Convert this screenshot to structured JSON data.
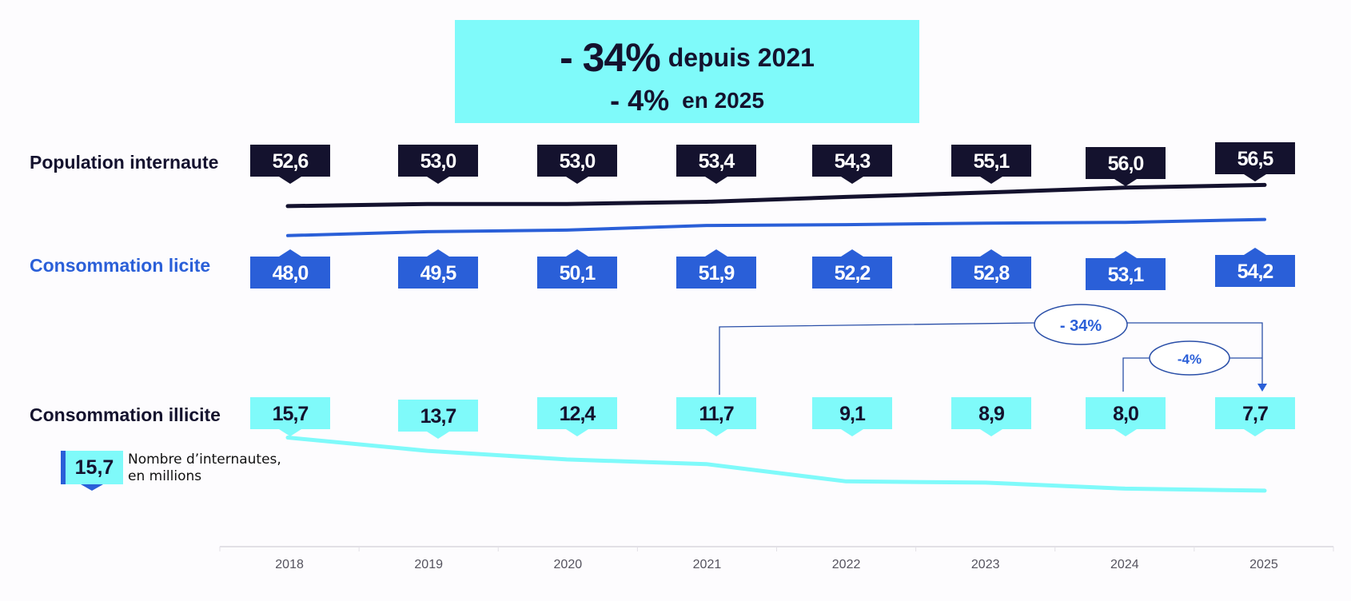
{
  "headline": {
    "main_value": "- 34%",
    "main_text": "depuis 2021",
    "sub_value": "- 4%",
    "sub_text": "en 2025"
  },
  "legend": {
    "sample_value": "15,7",
    "text_line1": "Nombre d’internautes,",
    "text_line2": "en millions"
  },
  "colors": {
    "population": "#14122e",
    "licite": "#2a5fd8",
    "illicite": "#7ffafa",
    "annotation": "#2a4fa8"
  },
  "chart_data": {
    "type": "line",
    "title": "- 34% depuis 2021 / - 4% en 2025",
    "xlabel": "",
    "ylabel": "Nombre d’internautes, en millions",
    "categories": [
      "2018",
      "2019",
      "2020",
      "2021",
      "2022",
      "2023",
      "2024",
      "2025"
    ],
    "series": [
      {
        "name": "Population internaute",
        "values": [
          52.6,
          53.0,
          53.0,
          53.4,
          54.3,
          55.1,
          56.0,
          56.5
        ],
        "labels": [
          "52,6",
          "53,0",
          "53,0",
          "53,4",
          "54,3",
          "55,1",
          "56,0",
          "56,5"
        ]
      },
      {
        "name": "Consommation licite",
        "values": [
          48.0,
          49.5,
          50.1,
          51.9,
          52.2,
          52.8,
          53.1,
          54.2
        ],
        "labels": [
          "48,0",
          "49,5",
          "50,1",
          "51,9",
          "52,2",
          "52,8",
          "53,1",
          "54,2"
        ]
      },
      {
        "name": "Consommation illicite",
        "values": [
          15.7,
          13.7,
          12.4,
          11.7,
          9.1,
          8.9,
          8.0,
          7.7
        ],
        "labels": [
          "15,7",
          "13,7",
          "12,4",
          "11,7",
          "9,1",
          "8,9",
          "8,0",
          "7,7"
        ]
      }
    ],
    "annotations": [
      {
        "text": "- 34%",
        "from": "2021",
        "to": "2025",
        "series": "Consommation illicite"
      },
      {
        "text": "-4%",
        "from": "2024",
        "to": "2025",
        "series": "Consommation illicite"
      }
    ],
    "grid": false,
    "legend": "left"
  }
}
